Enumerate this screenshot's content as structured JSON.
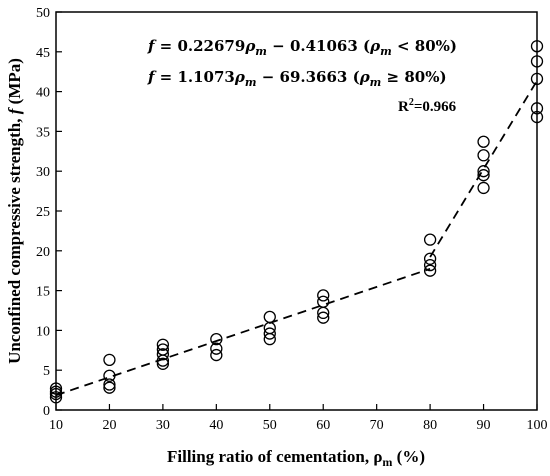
{
  "chart_data": {
    "type": "scatter",
    "xlabel": "Filling ratio of cementation, ρm (%)",
    "ylabel": "Unconfined compressive strength, f (MPa)",
    "xlim": [
      10,
      100
    ],
    "ylim": [
      0,
      50
    ],
    "xticks": [
      10,
      20,
      30,
      40,
      50,
      60,
      70,
      80,
      90,
      100
    ],
    "yticks": [
      0,
      5,
      10,
      15,
      20,
      25,
      30,
      35,
      40,
      45,
      50
    ],
    "grid": false,
    "points": [
      {
        "x": 10,
        "y": 1.6
      },
      {
        "x": 10,
        "y": 2.0
      },
      {
        "x": 10,
        "y": 2.3
      },
      {
        "x": 10,
        "y": 2.7
      },
      {
        "x": 20,
        "y": 2.8
      },
      {
        "x": 20,
        "y": 3.2
      },
      {
        "x": 20,
        "y": 4.3
      },
      {
        "x": 20,
        "y": 6.3
      },
      {
        "x": 30,
        "y": 5.8
      },
      {
        "x": 30,
        "y": 6.2
      },
      {
        "x": 30,
        "y": 7.0
      },
      {
        "x": 30,
        "y": 7.6
      },
      {
        "x": 30,
        "y": 8.2
      },
      {
        "x": 40,
        "y": 6.9
      },
      {
        "x": 40,
        "y": 7.7
      },
      {
        "x": 40,
        "y": 8.9
      },
      {
        "x": 50,
        "y": 8.9
      },
      {
        "x": 50,
        "y": 9.6
      },
      {
        "x": 50,
        "y": 10.3
      },
      {
        "x": 50,
        "y": 11.7
      },
      {
        "x": 60,
        "y": 11.6
      },
      {
        "x": 60,
        "y": 12.2
      },
      {
        "x": 60,
        "y": 13.6
      },
      {
        "x": 60,
        "y": 14.4
      },
      {
        "x": 80,
        "y": 17.5
      },
      {
        "x": 80,
        "y": 18.2
      },
      {
        "x": 80,
        "y": 19.0
      },
      {
        "x": 80,
        "y": 21.4
      },
      {
        "x": 90,
        "y": 27.9
      },
      {
        "x": 90,
        "y": 29.5
      },
      {
        "x": 90,
        "y": 30.0
      },
      {
        "x": 90,
        "y": 32.0
      },
      {
        "x": 90,
        "y": 33.7
      },
      {
        "x": 100,
        "y": 36.8
      },
      {
        "x": 100,
        "y": 37.9
      },
      {
        "x": 100,
        "y": 41.6
      },
      {
        "x": 100,
        "y": 43.8
      },
      {
        "x": 100,
        "y": 45.7
      }
    ],
    "fit_segments": [
      {
        "slope": 0.22679,
        "intercept": -0.41063,
        "x_range": [
          10,
          80
        ]
      },
      {
        "slope": 1.1073,
        "intercept": -69.3663,
        "x_range": [
          80,
          100
        ]
      }
    ],
    "annotations": {
      "eq1": "f = 0.22679ρm − 0.41063 (ρm < 80%)",
      "eq2": "f = 1.1073ρm − 69.3663 (ρm ≥ 80%)",
      "r2_label": "R",
      "r2_exp": "2",
      "r2_value": "=0.966"
    }
  }
}
